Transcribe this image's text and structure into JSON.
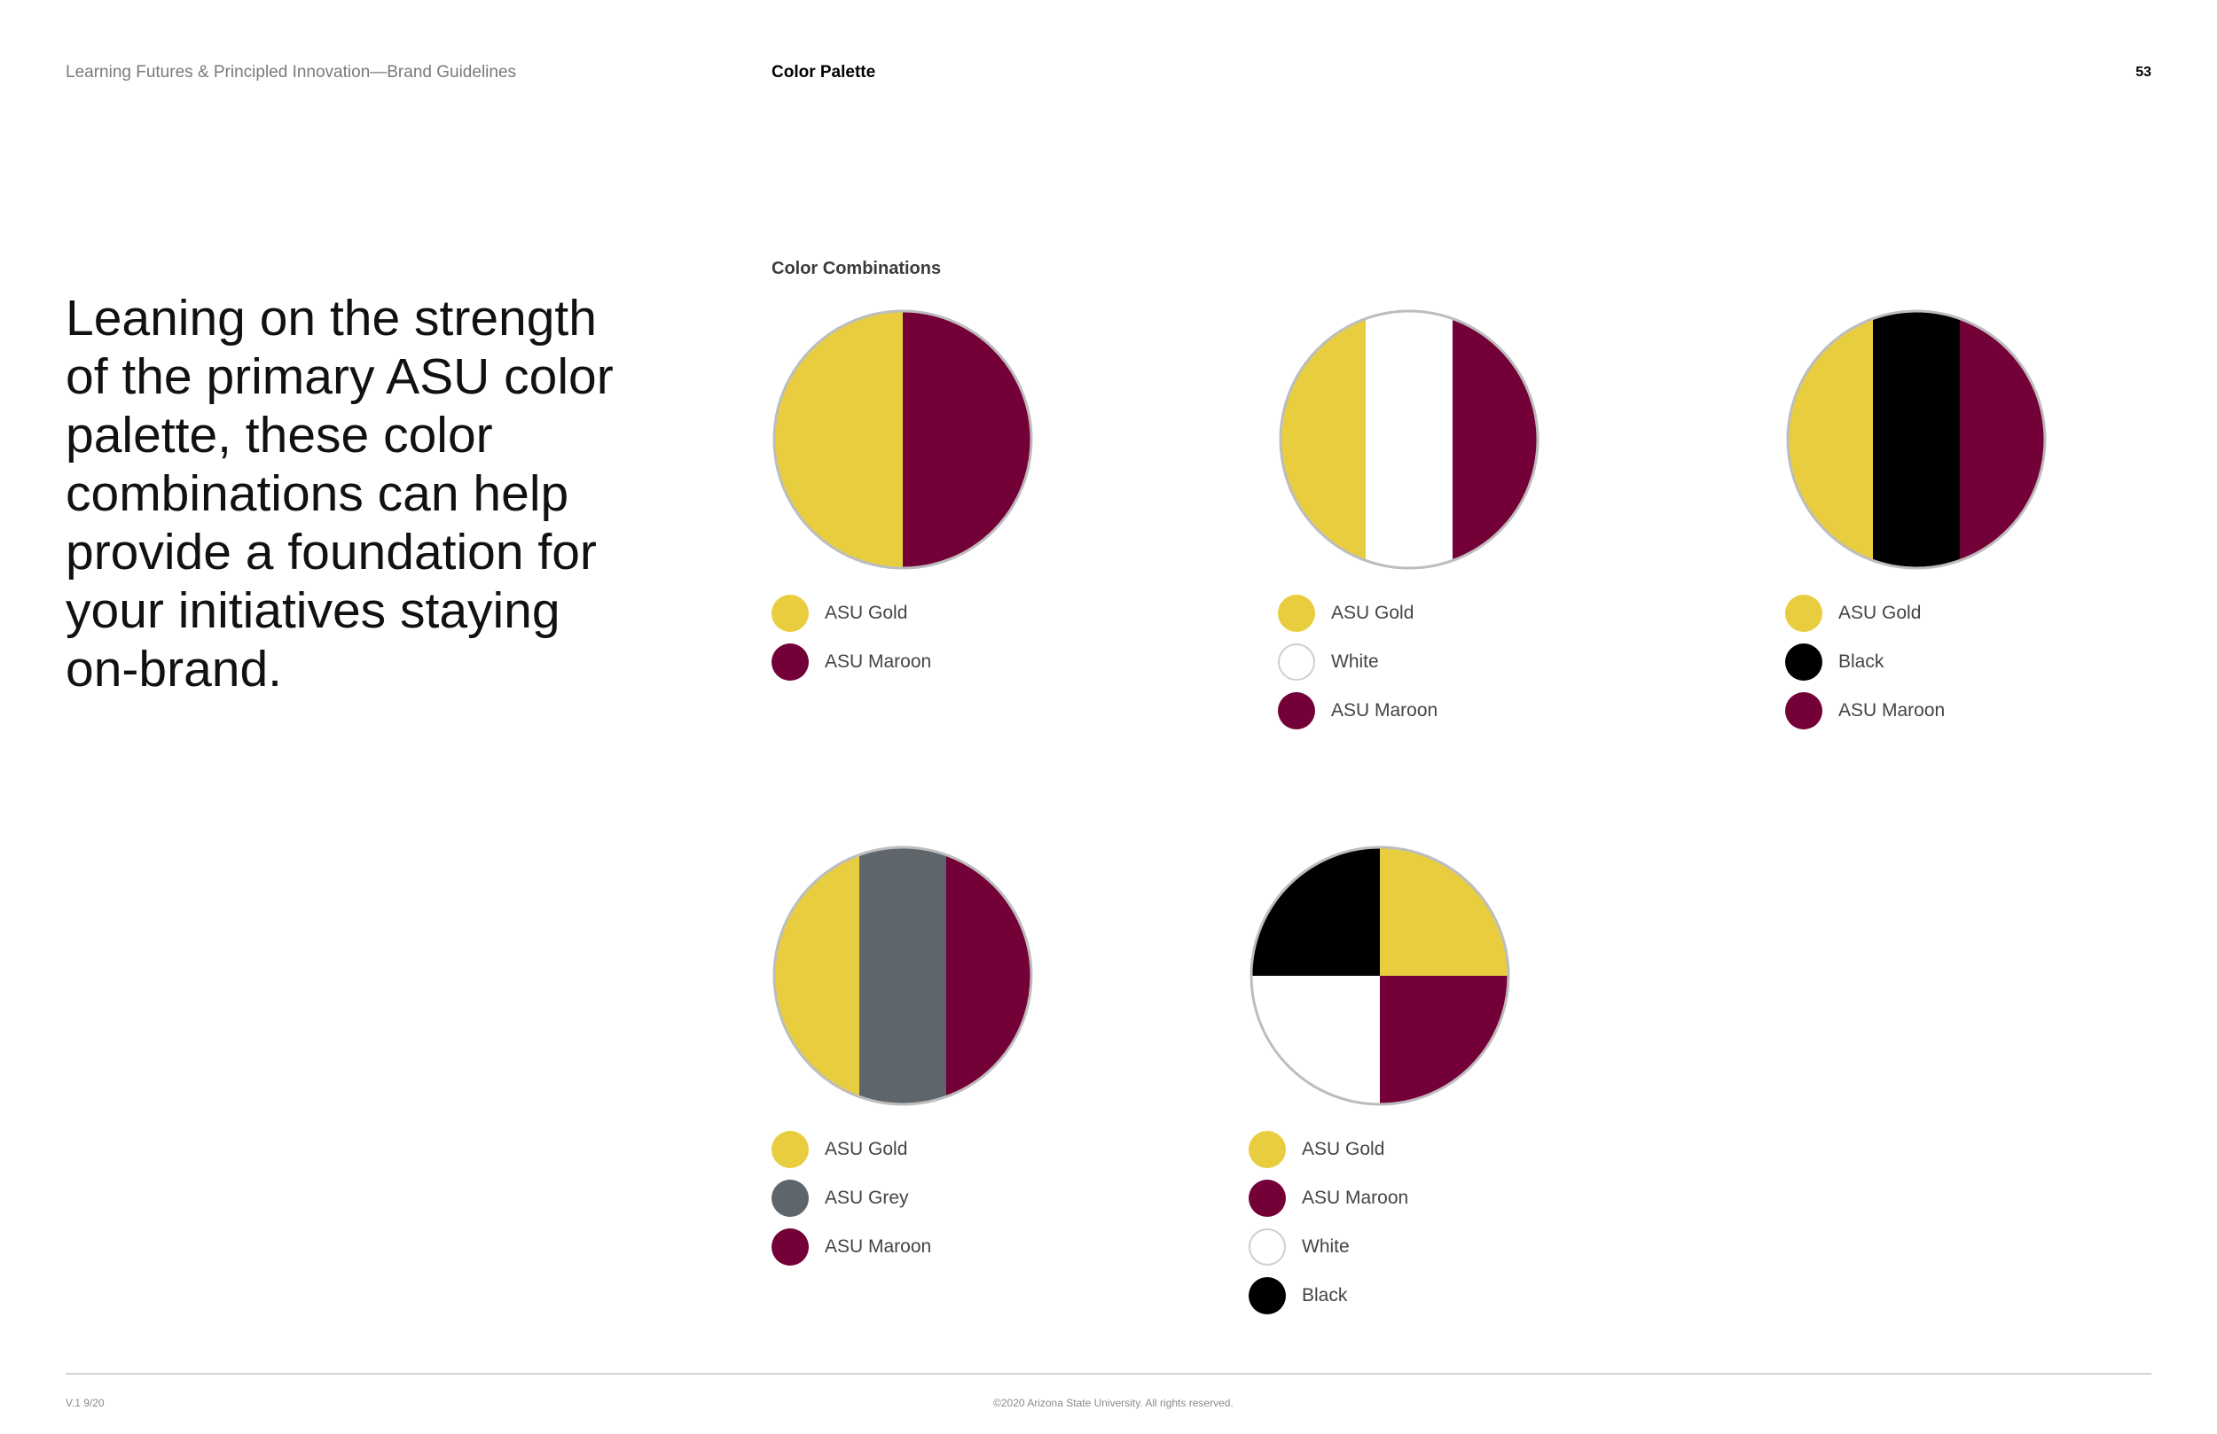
{
  "header": {
    "left": "Learning Futures & Principled Innovation—Brand Guidelines",
    "center": "Color Palette",
    "page_number": "53"
  },
  "headline": "Leaning on the strength of the primary ASU color palette, these color combinations can help provide a foundation for your initiatives staying on-brand.",
  "section_label": "Color Combinations",
  "colors": {
    "gold": "#E8CE3F",
    "maroon": "#740038",
    "black": "#000000",
    "white": "#FFFFFF",
    "grey": "#5E656B"
  },
  "combinations": [
    {
      "legend": [
        {
          "label": "ASU Gold",
          "color": "#E8CE3F"
        },
        {
          "label": "ASU Maroon",
          "color": "#740038"
        }
      ]
    },
    {
      "legend": [
        {
          "label": "ASU Gold",
          "color": "#E8CE3F"
        },
        {
          "label": "White",
          "color": "#FFFFFF"
        },
        {
          "label": "ASU Maroon",
          "color": "#740038"
        }
      ]
    },
    {
      "legend": [
        {
          "label": "ASU Gold",
          "color": "#E8CE3F"
        },
        {
          "label": "Black",
          "color": "#000000"
        },
        {
          "label": "ASU Maroon",
          "color": "#740038"
        }
      ]
    },
    {
      "legend": [
        {
          "label": "ASU Gold",
          "color": "#E8CE3F"
        },
        {
          "label": "ASU Grey",
          "color": "#5E656B"
        },
        {
          "label": "ASU Maroon",
          "color": "#740038"
        }
      ]
    },
    {
      "legend": [
        {
          "label": "ASU Gold",
          "color": "#E8CE3F"
        },
        {
          "label": "ASU Maroon",
          "color": "#740038"
        },
        {
          "label": "White",
          "color": "#FFFFFF"
        },
        {
          "label": "Black",
          "color": "#000000"
        }
      ]
    }
  ],
  "footer": {
    "version": "V.1 9/20",
    "copyright": "©2020 Arizona State University. All rights reserved."
  }
}
